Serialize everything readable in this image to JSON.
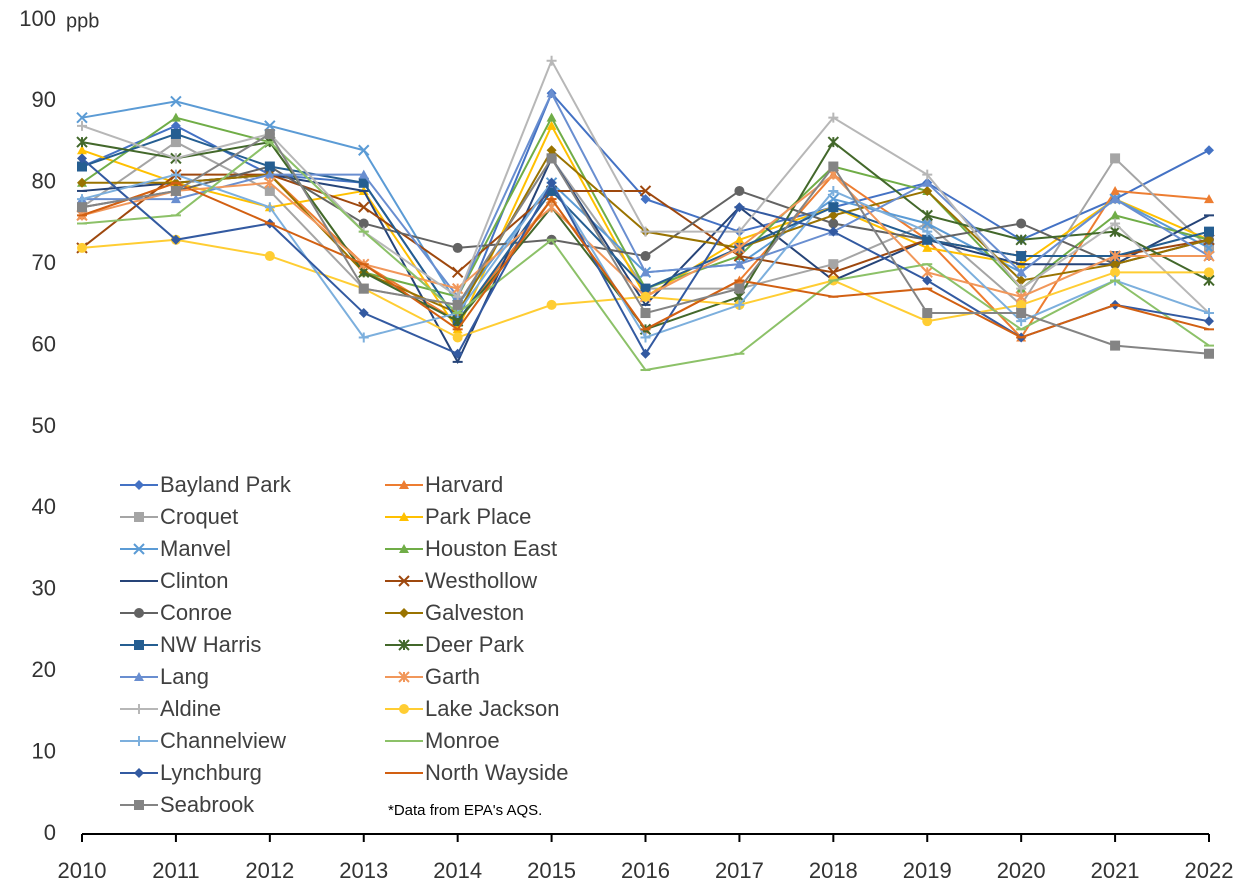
{
  "chart_data": {
    "type": "line",
    "y_unit_label": "ppb",
    "annotation": "*Data from EPA's AQS.",
    "x": [
      2010,
      2011,
      2012,
      2013,
      2014,
      2015,
      2016,
      2017,
      2018,
      2019,
      2020,
      2021,
      2022
    ],
    "xlim": [
      2010,
      2022
    ],
    "xticks": [
      2010,
      2011,
      2012,
      2013,
      2014,
      2015,
      2016,
      2017,
      2018,
      2019,
      2020,
      2021,
      2022
    ],
    "ylim": [
      0,
      100
    ],
    "yticks": [
      0,
      10,
      20,
      30,
      40,
      50,
      60,
      70,
      80,
      90,
      100
    ],
    "grid": false,
    "series": [
      {
        "name": "Bayland Park",
        "color": "#4472c4",
        "marker": "diamond",
        "values": [
          82,
          87,
          81,
          80,
          63,
          91,
          78,
          74,
          77,
          80,
          73,
          78,
          84
        ]
      },
      {
        "name": "Harvard",
        "color": "#ed7d31",
        "marker": "triangle",
        "values": [
          76,
          80,
          81,
          70,
          63,
          78,
          62,
          68,
          81,
          73,
          61,
          79,
          78
        ]
      },
      {
        "name": "Croquet",
        "color": "#a5a5a5",
        "marker": "square",
        "values": [
          77,
          85,
          79,
          67,
          65,
          83,
          67,
          67,
          70,
          75,
          65,
          83,
          72
        ]
      },
      {
        "name": "Park Place",
        "color": "#ffc000",
        "marker": "triangle",
        "values": [
          84,
          80,
          77,
          79,
          62,
          87,
          66,
          73,
          77,
          72,
          70,
          78,
          73
        ]
      },
      {
        "name": "Manvel",
        "color": "#5b9bd5",
        "marker": "x",
        "values": [
          88,
          90,
          87,
          84,
          65,
          80,
          69,
          70,
          78,
          75,
          69,
          78,
          72
        ]
      },
      {
        "name": "Houston East",
        "color": "#70ad47",
        "marker": "triangle",
        "values": [
          80,
          88,
          85,
          69,
          66,
          88,
          67,
          71,
          82,
          79,
          67,
          76,
          73
        ]
      },
      {
        "name": "Clinton",
        "color": "#264478",
        "marker": "dash",
        "values": [
          79,
          80,
          81,
          79,
          58,
          83,
          65,
          77,
          68,
          73,
          70,
          70,
          76
        ]
      },
      {
        "name": "Westhollow",
        "color": "#9e480e",
        "marker": "x",
        "values": [
          72,
          81,
          81,
          77,
          69,
          79,
          79,
          71,
          69,
          73,
          71,
          71,
          73
        ]
      },
      {
        "name": "Conroe",
        "color": "#636363",
        "marker": "circle",
        "values": [
          77,
          79,
          82,
          75,
          72,
          73,
          71,
          79,
          75,
          73,
          75,
          70,
          73
        ]
      },
      {
        "name": "Galveston",
        "color": "#997300",
        "marker": "diamond",
        "values": [
          80,
          80,
          81,
          69,
          64,
          84,
          74,
          72,
          76,
          79,
          68,
          70,
          73
        ]
      },
      {
        "name": "NW Harris",
        "color": "#255e91",
        "marker": "square",
        "values": [
          82,
          86,
          82,
          80,
          63,
          79,
          67,
          72,
          77,
          73,
          71,
          71,
          74
        ]
      },
      {
        "name": "Deer Park",
        "color": "#43682b",
        "marker": "star",
        "values": [
          85,
          83,
          85,
          69,
          63,
          77,
          62,
          66,
          85,
          76,
          73,
          74,
          68
        ]
      },
      {
        "name": "Lang",
        "color": "#698ed0",
        "marker": "triangle",
        "values": [
          78,
          78,
          81,
          81,
          66,
          91,
          69,
          70,
          74,
          80,
          69,
          78,
          71
        ]
      },
      {
        "name": "Garth",
        "color": "#f1975a",
        "marker": "star",
        "values": [
          76,
          79,
          80,
          70,
          67,
          77,
          66,
          72,
          81,
          69,
          66,
          71,
          71
        ]
      },
      {
        "name": "Aldine",
        "color": "#b7b7b7",
        "marker": "plus",
        "values": [
          87,
          83,
          86,
          74,
          66,
          95,
          74,
          74,
          88,
          81,
          67,
          75,
          64
        ]
      },
      {
        "name": "Lake Jackson",
        "color": "#ffcd33",
        "marker": "circle",
        "values": [
          72,
          73,
          71,
          67,
          61,
          65,
          66,
          65,
          68,
          63,
          65,
          69,
          69
        ]
      },
      {
        "name": "Channelview",
        "color": "#7cafdd",
        "marker": "plus",
        "values": [
          78,
          81,
          77,
          61,
          64,
          80,
          61,
          65,
          79,
          74,
          63,
          68,
          64
        ]
      },
      {
        "name": "Monroe",
        "color": "#8cc168",
        "marker": "dash",
        "values": [
          75,
          76,
          85,
          74,
          64,
          73,
          57,
          59,
          68,
          70,
          62,
          68,
          60
        ]
      },
      {
        "name": "Lynchburg",
        "color": "#335aa1",
        "marker": "diamond",
        "values": [
          83,
          73,
          75,
          64,
          59,
          80,
          59,
          77,
          74,
          68,
          61,
          65,
          63
        ]
      },
      {
        "name": "North Wayside",
        "color": "#d26012",
        "marker": "dash",
        "values": [
          76,
          80,
          75,
          70,
          62,
          78,
          62,
          68,
          66,
          67,
          61,
          65,
          62
        ]
      },
      {
        "name": "Seabrook",
        "color": "#848484",
        "marker": "square",
        "values": [
          77,
          79,
          86,
          67,
          65,
          83,
          64,
          67,
          82,
          64,
          64,
          60,
          59
        ]
      }
    ]
  }
}
